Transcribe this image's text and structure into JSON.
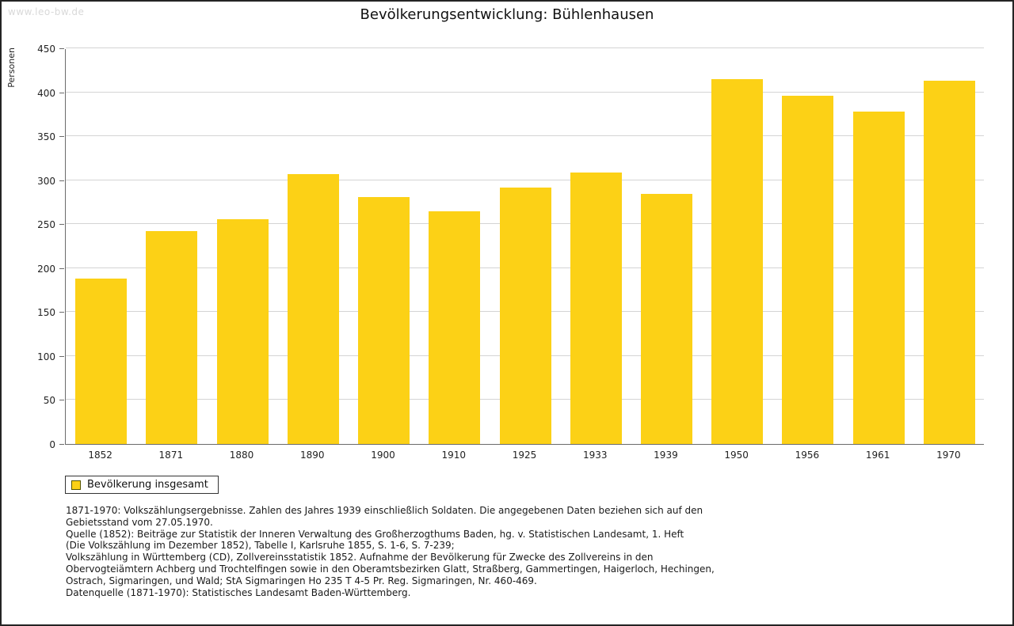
{
  "watermark": "www.leo-bw.de",
  "title": "Bevölkerungsentwicklung: Bühlenhausen",
  "chart_data": {
    "type": "bar",
    "title": "Bevölkerungsentwicklung: Bühlenhausen",
    "categories": [
      "1852",
      "1871",
      "1880",
      "1890",
      "1900",
      "1910",
      "1925",
      "1933",
      "1939",
      "1950",
      "1956",
      "1961",
      "1970"
    ],
    "values": [
      188,
      242,
      256,
      307,
      281,
      265,
      292,
      309,
      284,
      415,
      396,
      378,
      413
    ],
    "xlabel": "",
    "ylabel": "Personen",
    "ylim": [
      0,
      450
    ],
    "ytick_step": 50,
    "grid": true,
    "bar_color": "#FCD116",
    "legend_position": "bottom-left",
    "legend_entries": [
      "Bevölkerung insgesamt"
    ]
  },
  "legend": {
    "label": "Bevölkerung insgesamt",
    "color": "#FCD116"
  },
  "footnote_lines": [
    "1871-1970: Volkszählungsergebnisse. Zahlen des Jahres 1939 einschließlich Soldaten. Die angegebenen Daten beziehen sich auf den",
    "Gebietsstand vom 27.05.1970.",
    "Quelle (1852): Beiträge zur Statistik der Inneren Verwaltung des Großherzogthums Baden, hg. v. Statistischen Landesamt, 1. Heft",
    "(Die Volkszählung im Dezember 1852), Tabelle I, Karlsruhe 1855, S. 1-6, S. 7-239;",
    "Volkszählung in Württemberg (CD), Zollvereinsstatistik 1852. Aufnahme der Bevölkerung für Zwecke des Zollvereins in den",
    "Obervogteiämtern Achberg und Trochtelfingen sowie in den Oberamtsbezirken Glatt, Straßberg, Gammertingen, Haigerloch, Hechingen,",
    "Ostrach, Sigmaringen, und Wald; StA Sigmaringen Ho 235 T 4-5 Pr. Reg. Sigmaringen, Nr. 460-469."
  ],
  "datasource": "Datenquelle (1871-1970): Statistisches Landesamt Baden-Württemberg."
}
